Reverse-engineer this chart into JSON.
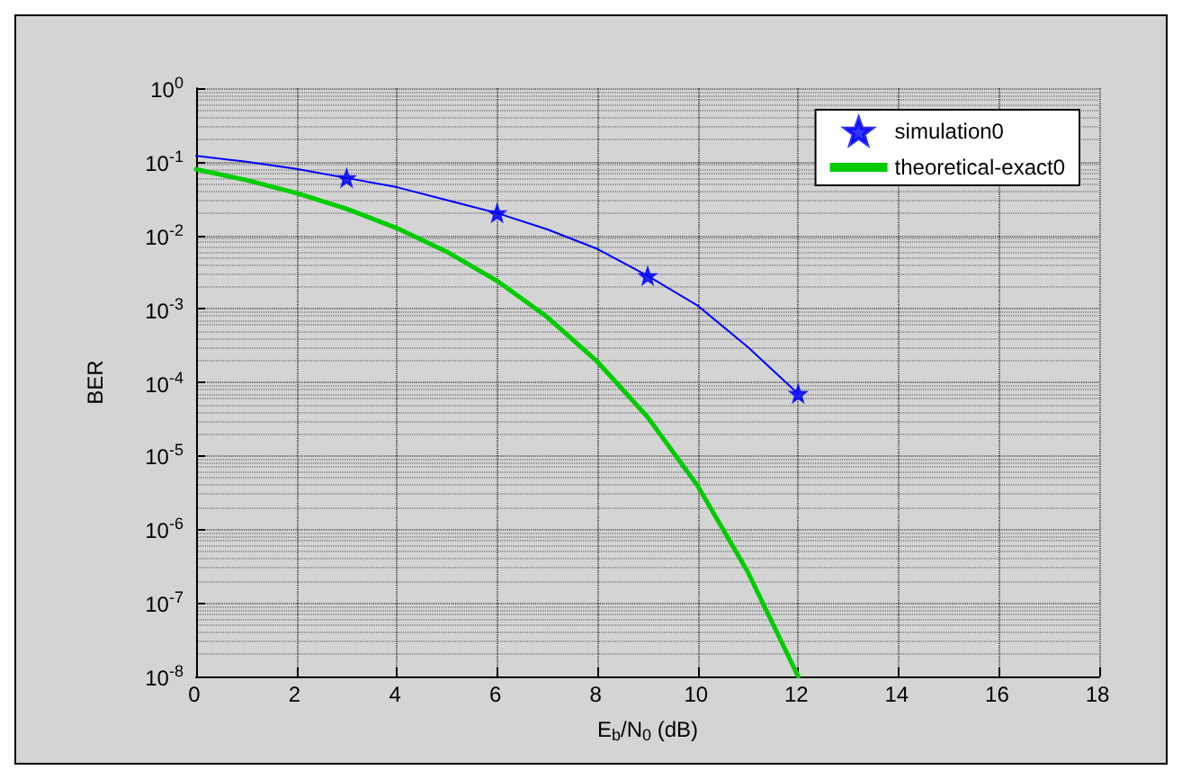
{
  "chart_data": {
    "type": "line",
    "xlabel": "E$_{b}$/N$_{0}$ (dB)",
    "ylabel": "BER",
    "log": "y",
    "xlim": [
      0,
      18
    ],
    "xticks": [
      0,
      2,
      4,
      6,
      8,
      10,
      12,
      14,
      16,
      18
    ],
    "ylim": [
      1e-08,
      1
    ],
    "yticks": [
      {
        "value": 1e-08,
        "label": "10$^{-8}$"
      },
      {
        "value": 1e-07,
        "label": "10$^{-7}$"
      },
      {
        "value": 1e-06,
        "label": "10$^{-6}$"
      },
      {
        "value": 1e-05,
        "label": "10$^{-5}$"
      },
      {
        "value": 0.0001,
        "label": "10$^{-4}$"
      },
      {
        "value": 0.001,
        "label": "10$^{-3}$"
      },
      {
        "value": 0.01,
        "label": "10$^{-2}$"
      },
      {
        "value": 0.1,
        "label": "10$^{-1}$"
      },
      {
        "value": 1,
        "label": "10$^{0}$"
      }
    ],
    "grid": true,
    "legend": "top right",
    "series": [
      {
        "type": "line",
        "color": "#0000ff",
        "marker": "none",
        "x": [
          0,
          1,
          2,
          3,
          4,
          5,
          6,
          7,
          8,
          9,
          10,
          11,
          12
        ],
        "values": [
          0.12,
          0.1,
          0.08,
          0.06,
          0.045,
          0.03,
          0.02,
          0.012,
          0.0065,
          0.0028,
          0.0011,
          0.0003,
          7e-05
        ]
      },
      {
        "name": "simulation0",
        "type": "scatter",
        "color": "#0000ff",
        "marker": "star",
        "x": [
          3,
          6,
          9,
          12
        ],
        "values": [
          0.06,
          0.02,
          0.0028,
          7e-05
        ]
      },
      {
        "name": "theoretical-exact0",
        "color": "#00cc00",
        "marker": "none",
        "x": [
          0,
          1,
          2,
          3,
          4,
          5,
          6,
          7,
          8,
          9,
          10,
          11,
          12
        ],
        "values": [
          0.0786,
          0.0563,
          0.0375,
          0.0229,
          0.0125,
          0.00595,
          0.00239,
          0.00077,
          0.00019,
          3.36e-05,
          3.87e-06,
          2.6e-07,
          1e-08
        ]
      }
    ]
  }
}
